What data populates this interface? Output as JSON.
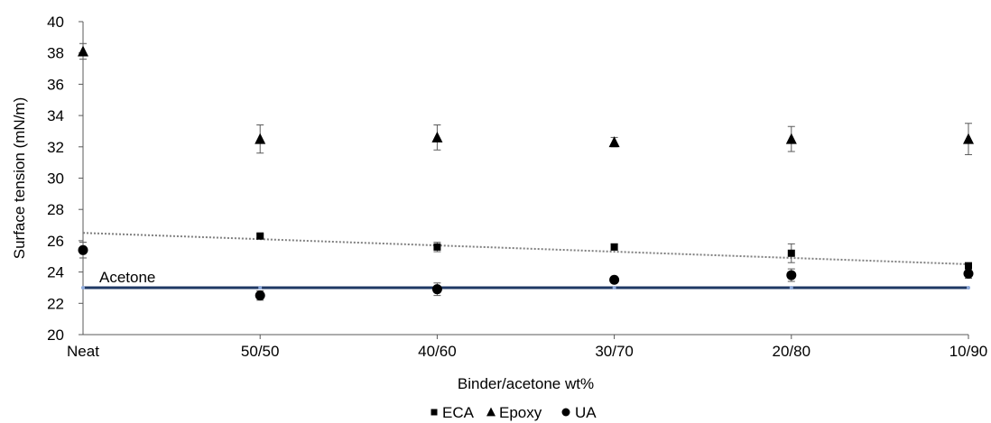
{
  "chart_data": {
    "type": "scatter",
    "title": "",
    "xlabel": "Binder/acetone wt%",
    "ylabel": "Surface tension (mN/m)",
    "ylim": [
      20,
      40
    ],
    "yticks": [
      20,
      22,
      24,
      26,
      28,
      30,
      32,
      34,
      36,
      38,
      40
    ],
    "categories": [
      "Neat",
      "50/50",
      "40/60",
      "30/70",
      "20/80",
      "10/90"
    ],
    "grid": false,
    "legend_position": "bottom",
    "series": [
      {
        "name": "ECA",
        "marker": "square",
        "color": "#000000",
        "values": [
          null,
          26.3,
          25.6,
          25.6,
          25.2,
          24.4
        ],
        "errors": [
          null,
          0.1,
          0.3,
          0.2,
          0.6,
          0.1
        ]
      },
      {
        "name": "Epoxy",
        "marker": "triangle",
        "color": "#000000",
        "values": [
          38.1,
          32.5,
          32.6,
          32.3,
          32.5,
          32.5
        ],
        "errors": [
          0.5,
          0.9,
          0.8,
          0.3,
          0.8,
          1.0
        ]
      },
      {
        "name": "UA",
        "marker": "circle",
        "color": "#000000",
        "values": [
          25.4,
          22.5,
          22.9,
          23.5,
          23.8,
          23.9
        ],
        "errors": [
          0.5,
          0.3,
          0.4,
          0.2,
          0.4,
          0.3
        ]
      }
    ],
    "trendline": {
      "style": "dotted",
      "color": "#7f7f7f",
      "start": 26.5,
      "end": 24.5
    },
    "reference_line": {
      "label": "Acetone",
      "value": 23.0,
      "color": "#1f3864"
    }
  }
}
